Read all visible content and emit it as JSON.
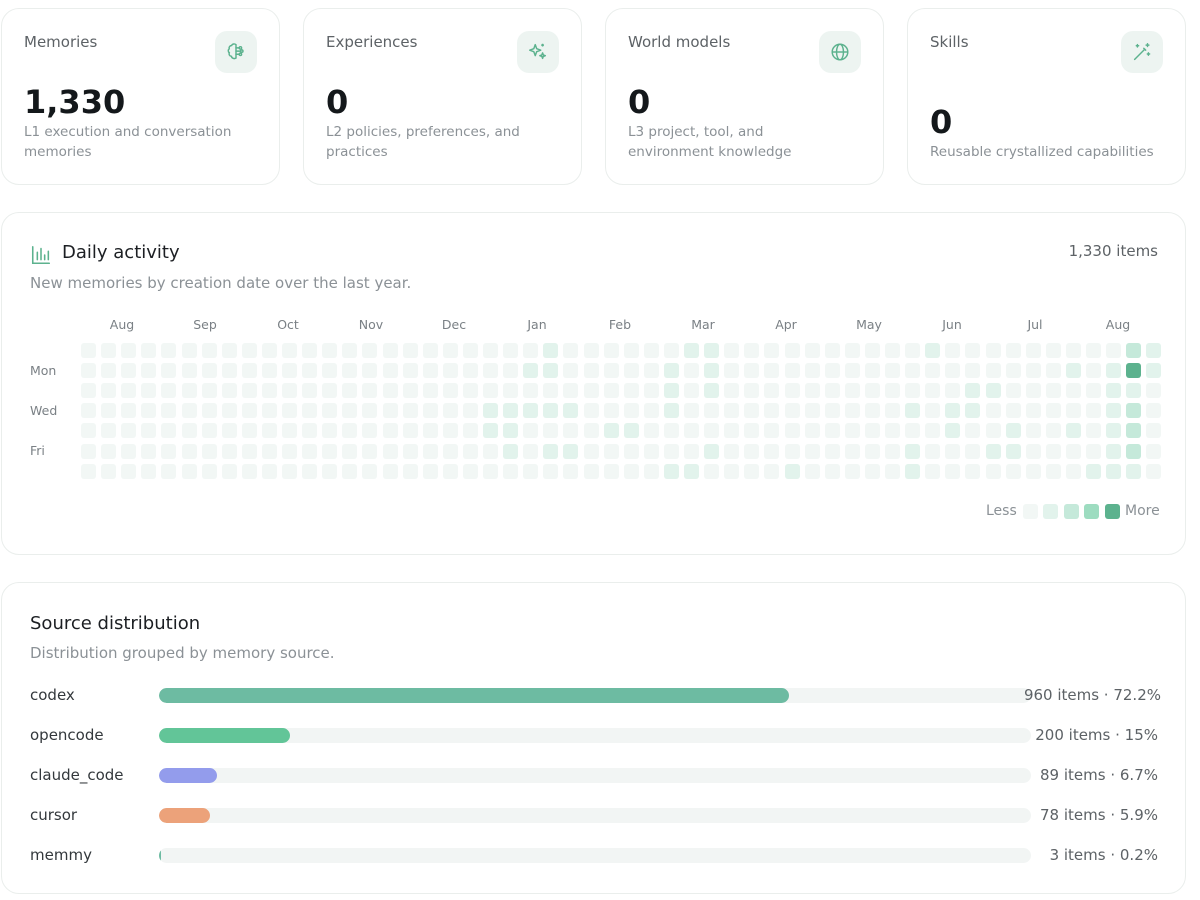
{
  "stats": [
    {
      "label": "Memories",
      "value": "1,330",
      "desc": "L1 execution and conversation memories",
      "icon": "brain-icon"
    },
    {
      "label": "Experiences",
      "value": "0",
      "desc": "L2 policies, preferences, and practices",
      "icon": "sparkles-icon"
    },
    {
      "label": "World models",
      "value": "0",
      "desc": "L3 project, tool, and environment knowledge",
      "icon": "globe-icon"
    },
    {
      "label": "Skills",
      "value": "0",
      "desc": "Reusable crystallized capabilities",
      "icon": "magic-wand-icon"
    }
  ],
  "activity": {
    "title": "Daily activity",
    "subtitle": "New memories by creation date over the last year.",
    "count": "1,330 items",
    "icon": "bar-chart-icon",
    "months": [
      "Aug",
      "Sep",
      "Oct",
      "Nov",
      "Dec",
      "Jan",
      "Feb",
      "Mar",
      "Apr",
      "May",
      "Jun",
      "Jul",
      "Aug"
    ],
    "day_labels": [
      "Mon",
      "Wed",
      "Fri"
    ],
    "legend_less": "Less",
    "legend_more": "More",
    "level_colors": [
      "#f2f7f5",
      "#e2f3ec",
      "#c5e9da",
      "#9ddcc0",
      "#5cb28e"
    ],
    "weeks": 54,
    "levels_by_week_day": [
      [
        0,
        0,
        0,
        0,
        0,
        0,
        0
      ],
      [
        0,
        0,
        0,
        0,
        0,
        0,
        0
      ],
      [
        0,
        0,
        0,
        0,
        0,
        0,
        0
      ],
      [
        0,
        0,
        0,
        0,
        0,
        0,
        0
      ],
      [
        0,
        0,
        0,
        0,
        0,
        0,
        0
      ],
      [
        0,
        0,
        0,
        0,
        0,
        0,
        0
      ],
      [
        0,
        0,
        0,
        0,
        0,
        0,
        0
      ],
      [
        0,
        0,
        0,
        0,
        0,
        0,
        0
      ],
      [
        0,
        0,
        0,
        0,
        0,
        0,
        0
      ],
      [
        0,
        0,
        0,
        0,
        0,
        0,
        0
      ],
      [
        0,
        0,
        0,
        0,
        0,
        0,
        0
      ],
      [
        0,
        0,
        0,
        0,
        0,
        0,
        0
      ],
      [
        0,
        0,
        0,
        0,
        0,
        0,
        0
      ],
      [
        0,
        0,
        0,
        0,
        0,
        0,
        0
      ],
      [
        0,
        0,
        0,
        0,
        0,
        0,
        0
      ],
      [
        0,
        0,
        0,
        0,
        0,
        0,
        0
      ],
      [
        0,
        0,
        0,
        0,
        0,
        0,
        0
      ],
      [
        0,
        0,
        0,
        0,
        0,
        0,
        0
      ],
      [
        0,
        0,
        0,
        0,
        0,
        0,
        0
      ],
      [
        0,
        0,
        0,
        0,
        0,
        0,
        0
      ],
      [
        0,
        0,
        0,
        1,
        1,
        0,
        0
      ],
      [
        0,
        0,
        0,
        1,
        1,
        1,
        0
      ],
      [
        0,
        1,
        0,
        1,
        0,
        0,
        0
      ],
      [
        1,
        1,
        0,
        1,
        0,
        1,
        0
      ],
      [
        0,
        0,
        0,
        1,
        0,
        1,
        0
      ],
      [
        0,
        0,
        0,
        0,
        0,
        0,
        0
      ],
      [
        0,
        0,
        0,
        0,
        1,
        0,
        0
      ],
      [
        0,
        0,
        0,
        0,
        1,
        0,
        0
      ],
      [
        0,
        0,
        0,
        0,
        0,
        0,
        0
      ],
      [
        0,
        1,
        1,
        1,
        0,
        0,
        1
      ],
      [
        1,
        0,
        0,
        0,
        0,
        0,
        1
      ],
      [
        1,
        1,
        1,
        0,
        0,
        1,
        0
      ],
      [
        0,
        0,
        0,
        0,
        0,
        0,
        0
      ],
      [
        0,
        0,
        0,
        0,
        0,
        0,
        0
      ],
      [
        0,
        0,
        0,
        0,
        0,
        0,
        0
      ],
      [
        0,
        0,
        0,
        0,
        0,
        0,
        1
      ],
      [
        0,
        0,
        0,
        0,
        0,
        0,
        0
      ],
      [
        0,
        0,
        0,
        0,
        0,
        0,
        0
      ],
      [
        0,
        0,
        0,
        0,
        0,
        0,
        0
      ],
      [
        0,
        0,
        0,
        0,
        0,
        0,
        0
      ],
      [
        0,
        0,
        0,
        0,
        0,
        0,
        0
      ],
      [
        0,
        0,
        0,
        1,
        0,
        1,
        1
      ],
      [
        1,
        0,
        0,
        0,
        0,
        0,
        0
      ],
      [
        0,
        0,
        0,
        1,
        1,
        0,
        0
      ],
      [
        0,
        0,
        1,
        1,
        0,
        0,
        0
      ],
      [
        0,
        0,
        1,
        0,
        0,
        1,
        0
      ],
      [
        0,
        0,
        0,
        0,
        1,
        1,
        0
      ],
      [
        0,
        0,
        0,
        0,
        0,
        0,
        0
      ],
      [
        0,
        0,
        0,
        0,
        0,
        0,
        0
      ],
      [
        0,
        1,
        0,
        0,
        1,
        0,
        0
      ],
      [
        0,
        0,
        0,
        0,
        0,
        0,
        1
      ],
      [
        0,
        1,
        1,
        1,
        1,
        1,
        1
      ],
      [
        2,
        4,
        1,
        2,
        2,
        2,
        1
      ],
      [
        1,
        1,
        0,
        0,
        0,
        0,
        0
      ]
    ]
  },
  "sources": {
    "title": "Source distribution",
    "subtitle": "Distribution grouped by memory source.",
    "items": [
      {
        "name": "codex",
        "value": "960 items · 72.2%",
        "fraction": 0.722,
        "color": "#6dbba2"
      },
      {
        "name": "opencode",
        "value": "200 items · 15%",
        "fraction": 0.15,
        "color": "#62c598"
      },
      {
        "name": "claude_code",
        "value": "89 items · 6.7%",
        "fraction": 0.067,
        "color": "#939cec"
      },
      {
        "name": "cursor",
        "value": "78 items · 5.9%",
        "fraction": 0.059,
        "color": "#eca27a"
      },
      {
        "name": "memmy",
        "value": "3 items · 0.2%",
        "fraction": 0.002,
        "color": "#6dbba2"
      }
    ]
  }
}
